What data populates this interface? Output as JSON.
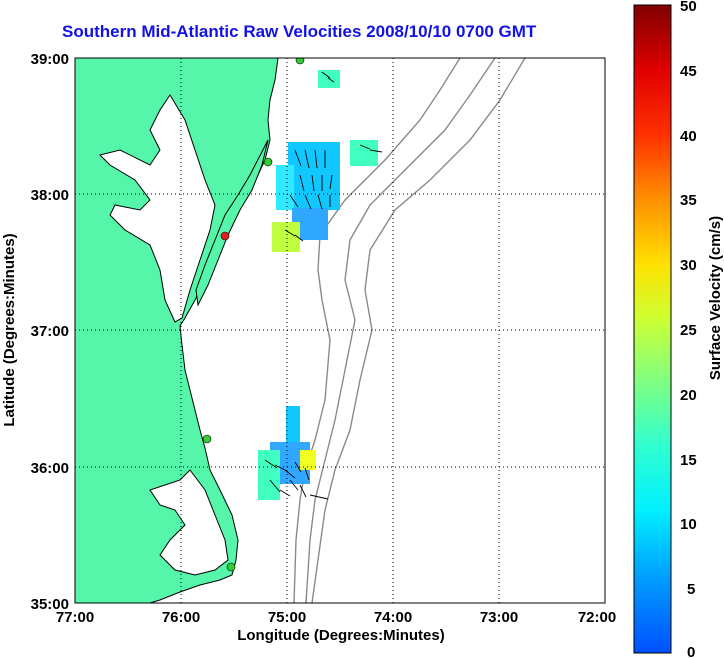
{
  "title": "Southern Mid-Atlantic Raw Velocities 2008/10/10 0700 GMT",
  "x_axis": {
    "label": "Longitude (Degrees:Minutes)",
    "ticks": [
      "77:00",
      "76:00",
      "75:00",
      "74:00",
      "73:00",
      "72:00"
    ]
  },
  "y_axis": {
    "label": "Latitude (Degrees:Minutes)",
    "ticks": [
      "39:00",
      "38:00",
      "37:00",
      "36:00",
      "35:00"
    ]
  },
  "colorbar": {
    "label": "Surface Velocity (cm/s)",
    "ticks": [
      "50",
      "45",
      "40",
      "35",
      "30",
      "25",
      "20",
      "15",
      "10",
      "5",
      "0"
    ],
    "colors": [
      "#0000ff",
      "#0060ff",
      "#00b0ff",
      "#00ffff",
      "#40ffc0",
      "#80ff80",
      "#c0ff40",
      "#ffff00",
      "#ffc000",
      "#ff8000",
      "#ff4000",
      "#e00000",
      "#800000"
    ]
  },
  "colors": {
    "land": "#55f5aa",
    "title": "#1212e6",
    "isobath": "#8a8a8a",
    "grid": "#000000"
  }
}
